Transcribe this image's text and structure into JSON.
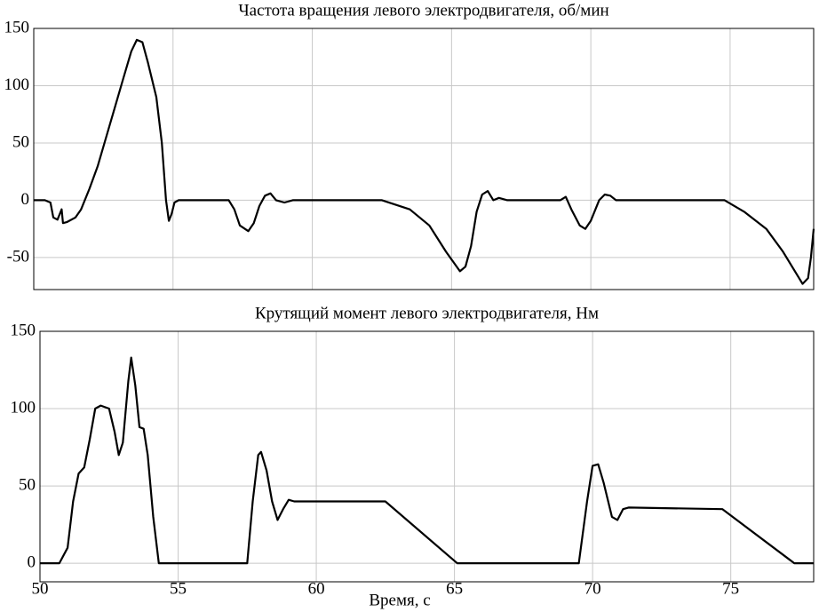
{
  "chart_data": [
    {
      "type": "line",
      "title": "Частота вращения левого электродвигателя, об/мин",
      "color": "#000000",
      "grid": true,
      "x": [
        50,
        50.4,
        50.6,
        50.7,
        50.85,
        51.0,
        51.05,
        51.2,
        51.5,
        51.7,
        52.0,
        52.3,
        52.6,
        52.9,
        53.2,
        53.5,
        53.7,
        53.9,
        54.1,
        54.4,
        54.6,
        54.75,
        54.85,
        54.95,
        55.05,
        55.2,
        57.0,
        57.2,
        57.4,
        57.7,
        57.9,
        58.1,
        58.3,
        58.5,
        58.7,
        59.0,
        59.3,
        62.5,
        63.5,
        64.2,
        64.8,
        65.3,
        65.5,
        65.7,
        65.9,
        66.1,
        66.3,
        66.5,
        66.7,
        67,
        68.9,
        69.1,
        69.3,
        69.6,
        69.8,
        70.0,
        70.3,
        70.5,
        70.7,
        70.9,
        74.8,
        75.5,
        76.3,
        76.9,
        77.4,
        77.6,
        77.8,
        77.9,
        78
      ],
      "values": [
        0,
        0,
        -2,
        -15,
        -17,
        -8,
        -20,
        -19,
        -15,
        -8,
        10,
        30,
        55,
        80,
        105,
        130,
        140,
        138,
        120,
        90,
        50,
        0,
        -18,
        -12,
        -2,
        0,
        0,
        -8,
        -22,
        -27,
        -20,
        -5,
        4,
        6,
        0,
        -2,
        0,
        0,
        -8,
        -22,
        -45,
        -62,
        -58,
        -40,
        -10,
        5,
        8,
        0,
        2,
        0,
        0,
        3,
        -8,
        -22,
        -25,
        -18,
        0,
        5,
        4,
        0,
        0,
        -10,
        -25,
        -45,
        -65,
        -73,
        -68,
        -50,
        -25
      ],
      "xlim": [
        50,
        78
      ],
      "xticks": [
        50,
        55,
        60,
        65,
        70,
        75
      ],
      "ylim": [
        -78,
        150
      ],
      "yticks": [
        -50,
        0,
        50,
        100,
        150
      ]
    },
    {
      "type": "line",
      "title": "Крутящий момент левого электродвигателя, Нм",
      "color": "#000000",
      "grid": true,
      "xlabel": "Время, с",
      "x": [
        50,
        50.7,
        51.0,
        51.2,
        51.4,
        51.6,
        51.8,
        52.0,
        52.2,
        52.5,
        52.7,
        52.85,
        53.0,
        53.2,
        53.3,
        53.45,
        53.6,
        53.75,
        53.9,
        54.1,
        54.3,
        57.5,
        57.7,
        57.9,
        58.0,
        58.2,
        58.4,
        58.6,
        58.8,
        59.0,
        59.2,
        62.5,
        65.1,
        69.5,
        69.8,
        70.0,
        70.2,
        70.4,
        70.7,
        70.9,
        71.1,
        71.3,
        74.7,
        77.3,
        78
      ],
      "values": [
        0,
        0,
        10,
        40,
        58,
        62,
        80,
        100,
        102,
        100,
        85,
        70,
        78,
        118,
        133,
        115,
        88,
        87,
        70,
        30,
        0,
        0,
        40,
        70,
        72,
        60,
        40,
        28,
        35,
        41,
        40,
        40,
        0,
        0,
        40,
        63,
        64,
        52,
        30,
        28,
        35,
        36,
        35,
        0,
        0
      ],
      "xlim": [
        50,
        78
      ],
      "xticks": [
        50,
        55,
        60,
        65,
        70,
        75
      ],
      "ylim": [
        -12,
        150
      ],
      "yticks": [
        0,
        50,
        100,
        150
      ]
    }
  ]
}
